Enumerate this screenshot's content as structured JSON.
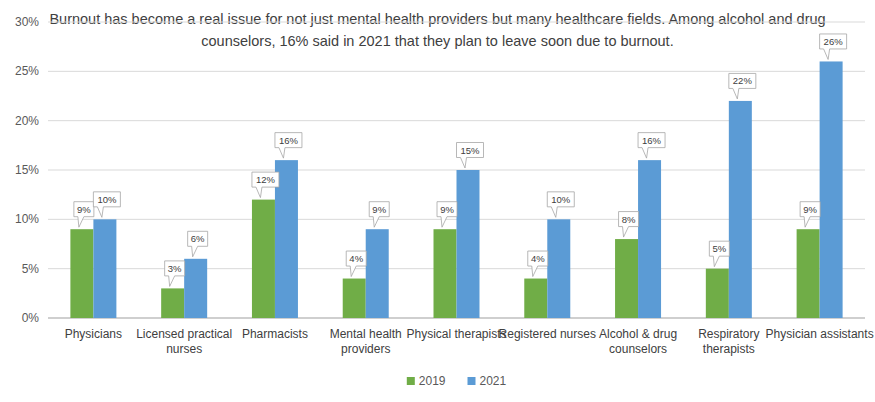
{
  "chart_data": {
    "type": "bar",
    "title": "Burnout has become a real issue for not just mental health providers but many healthcare fields. Among alcohol and drug counselors, 16% said in 2021 that they plan to leave soon due to burnout.",
    "categories": [
      "Physicians",
      "Licensed practical nurses",
      "Pharmacists",
      "Mental health providers",
      "Physical therapists",
      "Registered nurses",
      "Alcohol & drug counselors",
      "Respiratory therapists",
      "Physician assistants"
    ],
    "series": [
      {
        "name": "2019",
        "color": "#70ad47",
        "values": [
          9,
          3,
          12,
          4,
          9,
          4,
          8,
          5,
          9
        ],
        "value_labels": [
          "9%",
          "3%",
          "12%",
          "4%",
          "9%",
          "4%",
          "8%",
          "5%",
          "9%"
        ]
      },
      {
        "name": "2021",
        "color": "#5b9bd5",
        "values": [
          10,
          6,
          16,
          9,
          15,
          10,
          16,
          22,
          26
        ],
        "value_labels": [
          "10%",
          "6%",
          "16%",
          "9%",
          "15%",
          "10%",
          "16%",
          "22%",
          "26%"
        ]
      }
    ],
    "ylim": [
      0,
      30
    ],
    "yticks": [
      {
        "value": 0,
        "label": "0%"
      },
      {
        "value": 5,
        "label": "5%"
      },
      {
        "value": 10,
        "label": "10%"
      },
      {
        "value": 15,
        "label": "15%"
      },
      {
        "value": 20,
        "label": "20%"
      },
      {
        "value": 25,
        "label": "25%"
      },
      {
        "value": 30,
        "label": "30%"
      }
    ],
    "grid": true,
    "legend": "bottom",
    "data_labels": true
  }
}
